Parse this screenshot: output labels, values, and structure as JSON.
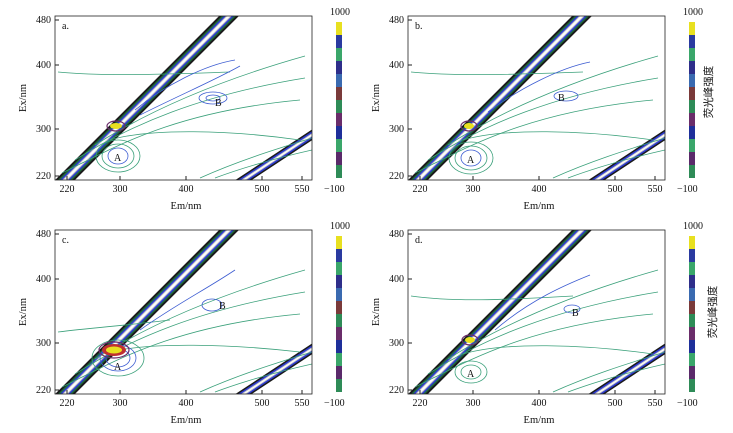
{
  "chart_data": [
    {
      "type": "heatmap",
      "panel_label": "a.",
      "xlabel": "Em/nm",
      "ylabel": "Ex/nm",
      "xticks": [
        220,
        300,
        400,
        500,
        550
      ],
      "yticks": [
        220,
        300,
        400,
        480
      ],
      "xlim": [
        210,
        550
      ],
      "ylim": [
        215,
        485
      ],
      "peaks": [
        {
          "label": "A",
          "em": 300,
          "ex": 240
        },
        {
          "label": "B",
          "em": 440,
          "ex": 350
        }
      ],
      "colorbar": {
        "min": -100,
        "max": 1000,
        "min_label": "−100",
        "max_label": "1000",
        "title": ""
      }
    },
    {
      "type": "heatmap",
      "panel_label": "b.",
      "xlabel": "Em/nm",
      "ylabel": "Ex/nm",
      "xticks": [
        220,
        300,
        400,
        500,
        550
      ],
      "yticks": [
        220,
        300,
        400,
        480
      ],
      "xlim": [
        210,
        550
      ],
      "ylim": [
        215,
        485
      ],
      "peaks": [
        {
          "label": "A",
          "em": 300,
          "ex": 237
        },
        {
          "label": "B",
          "em": 440,
          "ex": 355
        }
      ],
      "colorbar": {
        "min": -100,
        "max": 1000,
        "min_label": "−100",
        "max_label": "1000",
        "title": "荧光峰强度"
      }
    },
    {
      "type": "heatmap",
      "panel_label": "c.",
      "xlabel": "Em/nm",
      "ylabel": "Ex/nm",
      "xticks": [
        220,
        300,
        400,
        500,
        550
      ],
      "yticks": [
        220,
        300,
        400,
        480
      ],
      "xlim": [
        210,
        550
      ],
      "ylim": [
        215,
        485
      ],
      "peaks": [
        {
          "label": "A",
          "em": 300,
          "ex": 245
        },
        {
          "label": "B",
          "em": 438,
          "ex": 362
        }
      ],
      "colorbar": {
        "min": -100,
        "max": 1000,
        "min_label": "−100",
        "max_label": "1000",
        "title": ""
      }
    },
    {
      "type": "heatmap",
      "panel_label": "d.",
      "xlabel": "Em/nm",
      "ylabel": "Ex/nm",
      "xticks": [
        220,
        300,
        400,
        500,
        550
      ],
      "yticks": [
        220,
        300,
        400,
        480
      ],
      "xlim": [
        210,
        550
      ],
      "ylim": [
        215,
        485
      ],
      "peaks": [
        {
          "label": "A",
          "em": 300,
          "ex": 237
        },
        {
          "label": "B",
          "em": 445,
          "ex": 350
        }
      ],
      "colorbar": {
        "min": -100,
        "max": 1000,
        "min_label": "−100",
        "max_label": "1000",
        "title": "荧光峰强度"
      }
    }
  ],
  "colors": {
    "contour_low": "#3aa07a",
    "contour_mid": "#3b5bd1",
    "band": [
      "#1a1a1a",
      "#1e6b3c",
      "#2e3bd0",
      "#c8c8c8",
      "#ffffff"
    ],
    "colorbar_scale": [
      "#2e8b57",
      "#5a2a6a",
      "#3aa66a",
      "#1e2f9a",
      "#6a2d6a",
      "#2e8b57",
      "#7a3a3a",
      "#3a6ab0",
      "#2e2e8a",
      "#3aa66a",
      "#2a3aa0",
      "#e8e020"
    ]
  }
}
